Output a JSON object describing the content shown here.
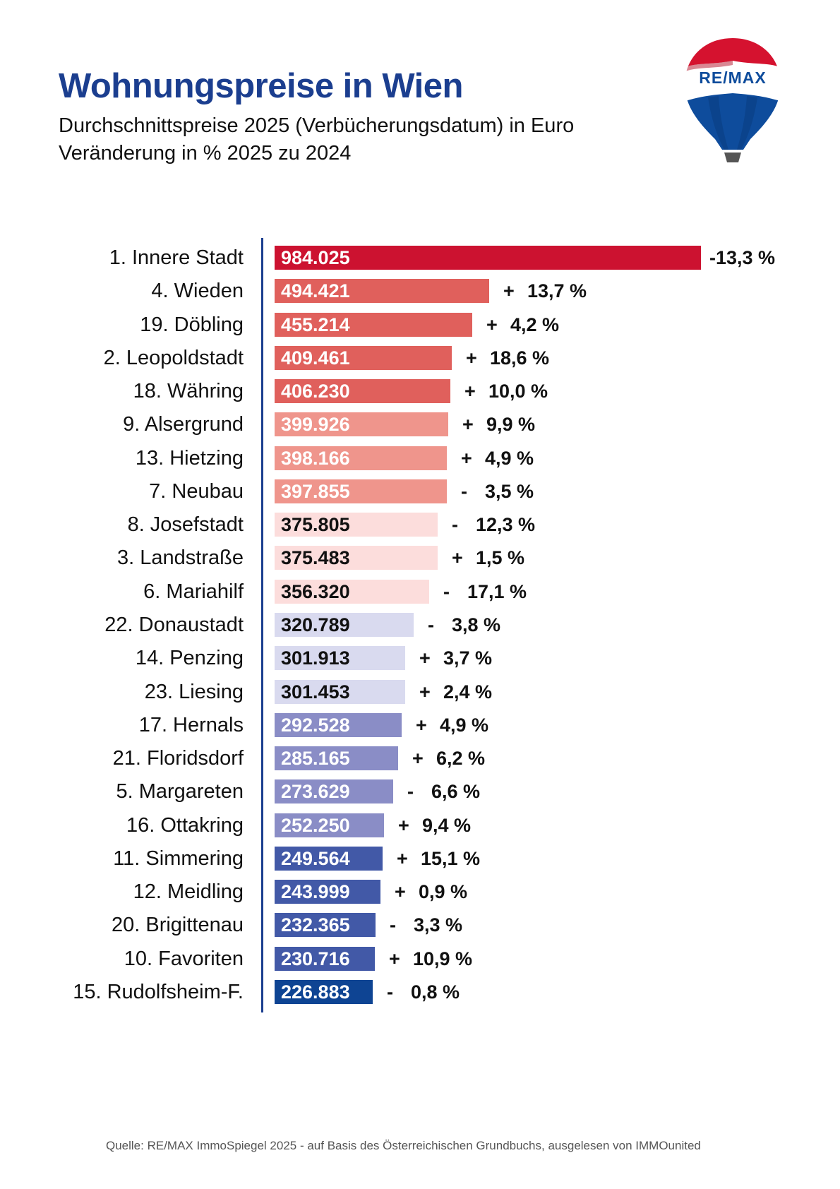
{
  "header": {
    "title": "Wohnungspreise in Wien",
    "subtitle_line1": "Durchschnittspreise 2025 (Verbücherungsdatum) in Euro",
    "subtitle_line2": "Veränderung in % 2025 zu 2024"
  },
  "logo": {
    "text": "RE/MAX",
    "icon": "remax-balloon-icon",
    "colors": {
      "red": "#D5122F",
      "blue": "#0E4C9C",
      "white": "#FFFFFF"
    }
  },
  "footer": {
    "source": "Quelle: RE/MAX ImmoSpiegel 2025 - auf Basis des Österreichischen Grundbuchs, ausgelesen von IMMOunited"
  },
  "colors": {
    "title": "#1B3E8F",
    "axis": "#1B3E8F",
    "tier1": "#CC1230",
    "tier2": "#E0605C",
    "tier3": "#EF958C",
    "tier4": "#FCDDDC",
    "tier5": "#D9DAEF",
    "tier6": "#8A8DC6",
    "tier7": "#4259A7",
    "tier8": "#0E4493"
  },
  "chart_data": {
    "type": "bar",
    "orientation": "horizontal",
    "title": "Wohnungspreise in Wien",
    "subtitle": "Durchschnittspreise 2025 (Verbücherungsdatum) in Euro; Veränderung in % 2025 zu 2024",
    "xlabel": "",
    "ylabel": "",
    "grid": false,
    "legend": null,
    "categories": [
      "1. Innere Stadt",
      "4. Wieden",
      "19. Döbling",
      "2. Leopoldstadt",
      "18. Währing",
      "9. Alsergrund",
      "13. Hietzing",
      "7. Neubau",
      "8. Josefstadt",
      "3. Landstraße",
      "6. Mariahilf",
      "22. Donaustadt",
      "14. Penzing",
      "23. Liesing",
      "17. Hernals",
      "21. Floridsdorf",
      "5. Margareten",
      "16. Ottakring",
      "11. Simmering",
      "12. Meidling",
      "20. Brigittenau",
      "10. Favoriten",
      "15. Rudolfsheim-F."
    ],
    "series": [
      {
        "name": "Durchschnittspreis 2025 (Euro)",
        "values": [
          984025,
          494421,
          455214,
          409461,
          406230,
          399926,
          398166,
          397855,
          375805,
          375483,
          356320,
          320789,
          301913,
          301453,
          292528,
          285165,
          273629,
          252250,
          249564,
          243999,
          232365,
          230716,
          226883
        ]
      },
      {
        "name": "Veränderung 2025 zu 2024 (%)",
        "values": [
          -13.3,
          13.7,
          4.2,
          18.6,
          10.0,
          9.9,
          4.9,
          -3.5,
          -12.3,
          1.5,
          -17.1,
          -3.8,
          3.7,
          2.4,
          4.9,
          6.2,
          -6.6,
          9.4,
          15.1,
          0.9,
          -3.3,
          10.9,
          -0.8
        ]
      }
    ],
    "rows": [
      {
        "label": "1. Innere Stadt",
        "value": 984025,
        "display": "984.025",
        "sign": "",
        "pct": "-13,3 %",
        "color": "#CC1230",
        "text_color": "#FFFFFF"
      },
      {
        "label": "4. Wieden",
        "value": 494421,
        "display": "494.421",
        "sign": "+",
        "pct": "13,7 %",
        "color": "#E0605C",
        "text_color": "#FFFFFF"
      },
      {
        "label": "19. Döbling",
        "value": 455214,
        "display": "455.214",
        "sign": "+",
        "pct": "4,2 %",
        "color": "#E0605C",
        "text_color": "#FFFFFF"
      },
      {
        "label": "2. Leopoldstadt",
        "value": 409461,
        "display": "409.461",
        "sign": "+",
        "pct": "18,6 %",
        "color": "#E0605C",
        "text_color": "#FFFFFF"
      },
      {
        "label": "18. Währing",
        "value": 406230,
        "display": "406.230",
        "sign": "+",
        "pct": "10,0 %",
        "color": "#E0605C",
        "text_color": "#FFFFFF"
      },
      {
        "label": "9. Alsergrund",
        "value": 399926,
        "display": "399.926",
        "sign": "+",
        "pct": "9,9 %",
        "color": "#EF958C",
        "text_color": "#FFFFFF"
      },
      {
        "label": "13. Hietzing",
        "value": 398166,
        "display": "398.166",
        "sign": "+",
        "pct": "4,9 %",
        "color": "#EF958C",
        "text_color": "#FFFFFF"
      },
      {
        "label": "7. Neubau",
        "value": 397855,
        "display": "397.855",
        "sign": "-",
        "pct": "3,5 %",
        "color": "#EF958C",
        "text_color": "#FFFFFF"
      },
      {
        "label": "8. Josefstadt",
        "value": 375805,
        "display": "375.805",
        "sign": "-",
        "pct": "12,3 %",
        "color": "#FCDDDC",
        "text_color": "#111111"
      },
      {
        "label": "3. Landstraße",
        "value": 375483,
        "display": "375.483",
        "sign": "+",
        "pct": "1,5 %",
        "color": "#FCDDDC",
        "text_color": "#111111"
      },
      {
        "label": "6. Mariahilf",
        "value": 356320,
        "display": "356.320",
        "sign": "-",
        "pct": "17,1 %",
        "color": "#FCDDDC",
        "text_color": "#111111"
      },
      {
        "label": "22. Donaustadt",
        "value": 320789,
        "display": "320.789",
        "sign": "-",
        "pct": "3,8 %",
        "color": "#D9DAEF",
        "text_color": "#111111"
      },
      {
        "label": "14. Penzing",
        "value": 301913,
        "display": "301.913",
        "sign": "+",
        "pct": "3,7 %",
        "color": "#D9DAEF",
        "text_color": "#111111"
      },
      {
        "label": "23. Liesing",
        "value": 301453,
        "display": "301.453",
        "sign": "+",
        "pct": "2,4 %",
        "color": "#D9DAEF",
        "text_color": "#111111"
      },
      {
        "label": "17. Hernals",
        "value": 292528,
        "display": "292.528",
        "sign": "+",
        "pct": "4,9 %",
        "color": "#8A8DC6",
        "text_color": "#FFFFFF"
      },
      {
        "label": "21. Floridsdorf",
        "value": 285165,
        "display": "285.165",
        "sign": "+",
        "pct": "6,2 %",
        "color": "#8A8DC6",
        "text_color": "#FFFFFF"
      },
      {
        "label": "5. Margareten",
        "value": 273629,
        "display": "273.629",
        "sign": "-",
        "pct": "6,6 %",
        "color": "#8A8DC6",
        "text_color": "#FFFFFF"
      },
      {
        "label": "16. Ottakring",
        "value": 252250,
        "display": "252.250",
        "sign": "+",
        "pct": "9,4 %",
        "color": "#8A8DC6",
        "text_color": "#FFFFFF"
      },
      {
        "label": "11. Simmering",
        "value": 249564,
        "display": "249.564",
        "sign": "+",
        "pct": "15,1 %",
        "color": "#4259A7",
        "text_color": "#FFFFFF"
      },
      {
        "label": "12. Meidling",
        "value": 243999,
        "display": "243.999",
        "sign": "+",
        "pct": "0,9 %",
        "color": "#4259A7",
        "text_color": "#FFFFFF"
      },
      {
        "label": "20. Brigittenau",
        "value": 232365,
        "display": "232.365",
        "sign": "-",
        "pct": "3,3 %",
        "color": "#4259A7",
        "text_color": "#FFFFFF"
      },
      {
        "label": "10. Favoriten",
        "value": 230716,
        "display": "230.716",
        "sign": "+",
        "pct": "10,9 %",
        "color": "#4259A7",
        "text_color": "#FFFFFF"
      },
      {
        "label": "15. Rudolfsheim-F.",
        "value": 226883,
        "display": "226.883",
        "sign": "-",
        "pct": "0,8 %",
        "color": "#0E4493",
        "text_color": "#FFFFFF"
      }
    ]
  }
}
